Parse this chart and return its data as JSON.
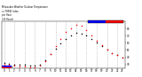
{
  "title": "Milwaukee Weather Outdoor Temperature vs THSW Index per Hour (24 Hours)",
  "background_color": "#ffffff",
  "grid_color": "#aaaaaa",
  "hours": [
    0,
    1,
    2,
    3,
    4,
    5,
    6,
    7,
    8,
    9,
    10,
    11,
    12,
    13,
    14,
    15,
    16,
    17,
    18,
    19,
    20,
    21,
    22,
    23
  ],
  "temp": [
    32,
    31,
    30,
    29,
    29,
    28,
    28,
    30,
    36,
    44,
    52,
    59,
    66,
    71,
    74,
    73,
    70,
    65,
    60,
    55,
    50,
    46,
    43,
    40
  ],
  "thsw": [
    30,
    29,
    28,
    27,
    27,
    26,
    26,
    28,
    34,
    44,
    56,
    66,
    75,
    81,
    86,
    84,
    78,
    70,
    63,
    57,
    50,
    46,
    43,
    39
  ],
  "temp_color": "#000000",
  "thsw_color": "#ff0000",
  "legend_blue_color": "#0000ff",
  "legend_red_color": "#ff0000",
  "ylim": [
    25,
    90
  ],
  "ytick_values": [
    30,
    40,
    50,
    60,
    70,
    80
  ],
  "grid_hours": [
    0,
    2,
    4,
    6,
    8,
    10,
    12,
    14,
    16,
    18,
    20,
    22
  ]
}
